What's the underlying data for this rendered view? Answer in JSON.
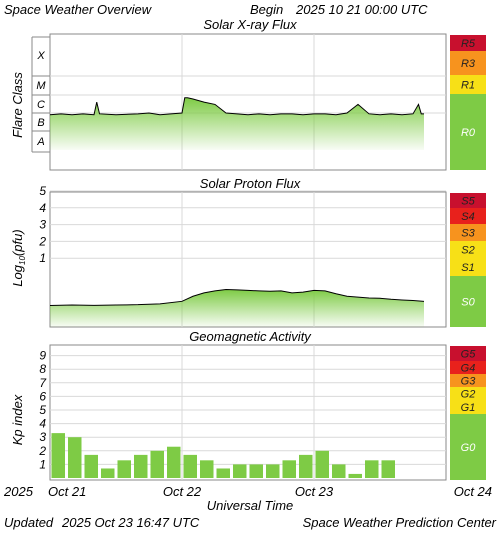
{
  "header": {
    "title": "Space Weather Overview",
    "begin_label": "Begin",
    "begin_value": "2025 10 21 00:00 UTC"
  },
  "footer": {
    "updated_label": "Updated",
    "updated_value": "2025 Oct 23 16:47 UTC",
    "credit": "Space Weather Prediction Center"
  },
  "x_axis": {
    "title": "Universal Time",
    "year_label": "2025",
    "tick_labels": [
      "Oct 21",
      "Oct 22",
      "Oct 23",
      "Oct 24"
    ],
    "range_hours": [
      0,
      72
    ]
  },
  "colors": {
    "fill_green": "#7ecb45",
    "line_black": "#000000",
    "grid": "#d9d9d9",
    "scale_red_dark": "#c8102e",
    "scale_red": "#e8211c",
    "scale_orange": "#f7931e",
    "scale_yellow": "#f7e017",
    "scale_green": "#7ecb45"
  },
  "chart_data": [
    {
      "type": "area",
      "title": "Solar X-ray Flux",
      "ylabel": "Flare Class",
      "y_categories": [
        "A",
        "B",
        "C",
        "M",
        "X"
      ],
      "scale_ticks": [
        "R5",
        "R3",
        "R1",
        "R0"
      ],
      "scale_colors": [
        "#c8102e",
        "#f7931e",
        "#f7e017",
        "#7ecb45"
      ],
      "x_hours": [
        0,
        2,
        4,
        6,
        8,
        8.5,
        9,
        12,
        16,
        18,
        20,
        22,
        24,
        24.5,
        25,
        26,
        28,
        30,
        32,
        34,
        36,
        38,
        40,
        42,
        44,
        46,
        48,
        50,
        52,
        54,
        56,
        58,
        60,
        62,
        64,
        66,
        67,
        67.5,
        68
      ],
      "flux_class": [
        "B8",
        "B9",
        "B8",
        "B9",
        "B8",
        "C4",
        "B9",
        "B8",
        "B9",
        "C1",
        "B8",
        "B9",
        "C1",
        "C7",
        "C7",
        "C6",
        "C4",
        "C3",
        "C1",
        "B9",
        "B8",
        "B9",
        "B8",
        "B9",
        "B9",
        "B8",
        "B9",
        "B9",
        "B8",
        "C1",
        "C3",
        "B9",
        "B8",
        "B9",
        "B8",
        "B9",
        "C3",
        "B9",
        "B9"
      ]
    },
    {
      "type": "area",
      "title": "Solar Proton Flux",
      "ylabel": "Log10(pfu)",
      "y_ticks": [
        1,
        2,
        3,
        4,
        5
      ],
      "scale_ticks": [
        "S5",
        "S4",
        "S3",
        "S2",
        "S1",
        "S0"
      ],
      "scale_colors": [
        "#c8102e",
        "#e8211c",
        "#f7931e",
        "#f7e017",
        "#f7e017",
        "#7ecb45"
      ],
      "x_hours": [
        0,
        4,
        8,
        12,
        16,
        20,
        24,
        26,
        28,
        30,
        32,
        34,
        36,
        38,
        40,
        42,
        44,
        46,
        48,
        50,
        52,
        54,
        56,
        58,
        60,
        62,
        64,
        66,
        68
      ],
      "values": [
        -0.15,
        -0.12,
        -0.14,
        -0.12,
        -0.1,
        -0.05,
        0.1,
        0.4,
        0.6,
        0.72,
        0.8,
        0.78,
        0.75,
        0.72,
        0.7,
        0.72,
        0.6,
        0.65,
        0.75,
        0.72,
        0.55,
        0.4,
        0.35,
        0.3,
        0.28,
        0.22,
        0.18,
        0.15,
        0.1
      ]
    },
    {
      "type": "bar",
      "title": "Geomagnetic Activity",
      "ylabel": "Kp index",
      "y_ticks": [
        1,
        2,
        3,
        4,
        5,
        6,
        7,
        8,
        9
      ],
      "ylim": [
        0,
        10
      ],
      "scale_ticks": [
        "G5",
        "G4",
        "G3",
        "G2",
        "G1",
        "G0"
      ],
      "scale_colors": [
        "#c8102e",
        "#e8211c",
        "#f7931e",
        "#f7e017",
        "#f7e017",
        "#7ecb45"
      ],
      "bar_hours": [
        0,
        3,
        6,
        9,
        12,
        15,
        18,
        21,
        24,
        27,
        30,
        33,
        36,
        39,
        42,
        45,
        48,
        51,
        54,
        57,
        60,
        63
      ],
      "values": [
        3.3,
        3.0,
        1.7,
        0.7,
        1.3,
        1.7,
        2.0,
        2.3,
        1.7,
        1.3,
        0.7,
        1.0,
        1.0,
        1.0,
        1.3,
        1.7,
        2.0,
        1.0,
        0.3,
        1.3,
        1.3,
        0
      ]
    }
  ]
}
